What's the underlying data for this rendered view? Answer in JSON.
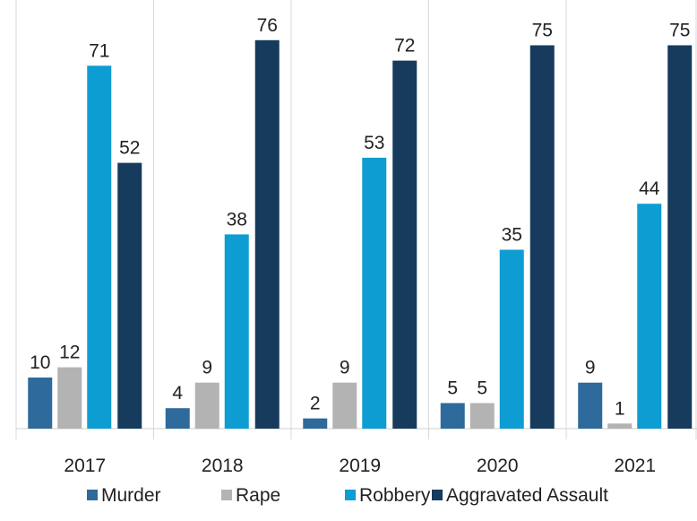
{
  "chart_data": {
    "type": "bar",
    "categories": [
      "2017",
      "2018",
      "2019",
      "2020",
      "2021"
    ],
    "series": [
      {
        "name": "Murder",
        "color": "#2e6a9b",
        "values": [
          10,
          4,
          2,
          5,
          9
        ]
      },
      {
        "name": "Rape",
        "color": "#b3b3b3",
        "values": [
          12,
          9,
          9,
          5,
          1
        ]
      },
      {
        "name": "Robbery",
        "color": "#0d9dd2",
        "values": [
          71,
          38,
          53,
          35,
          44
        ]
      },
      {
        "name": "Aggravated Assault",
        "color": "#163b5c",
        "values": [
          52,
          76,
          72,
          75,
          75
        ]
      }
    ],
    "ylim": [
      0,
      80
    ],
    "legend": "bottom"
  }
}
